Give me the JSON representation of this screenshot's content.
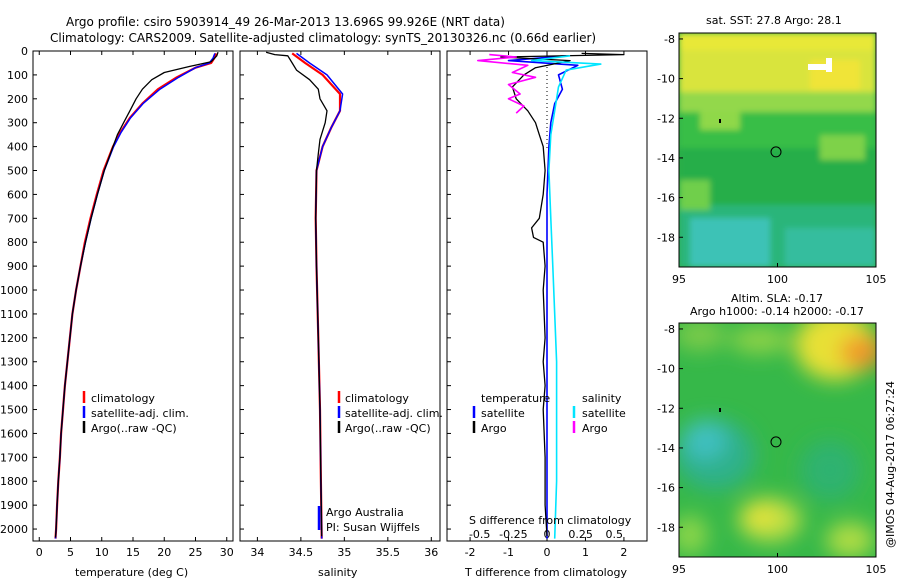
{
  "header": {
    "title_line1": "Argo profile: csiro 5903914_49 26-Mar-2013 13.696S 99.926E (NRT data)",
    "title_line2": "Climatology: CARS2009. Satellite-adjusted climatology: synTS_20130326.nc (0.66d earlier)"
  },
  "credit": "@IMOS 04-Aug-2017 06:27:24",
  "colors": {
    "climatology": "#ff0000",
    "satellite": "#0000ff",
    "argo": "#000000",
    "sal_satellite": "#00e5ff",
    "sal_argo": "#ff00ff"
  },
  "chart_data": [
    {
      "type": "line",
      "panel": "temperature",
      "xlabel": "temperature (deg C)",
      "xlim": [
        -1,
        31
      ],
      "ylim": [
        2050,
        0
      ],
      "xticks": [
        0,
        5,
        10,
        15,
        20,
        25,
        30
      ],
      "yticks": [
        0,
        100,
        200,
        300,
        400,
        500,
        600,
        700,
        800,
        900,
        1000,
        1100,
        1200,
        1300,
        1400,
        1500,
        1600,
        1700,
        1800,
        1900,
        2000
      ],
      "legend": [
        "climatology",
        "satellite-adj. clim.",
        "Argo(..raw -QC)"
      ],
      "series": [
        {
          "name": "climatology",
          "color": "#ff0000",
          "points": [
            [
              28.3,
              10
            ],
            [
              28.0,
              30
            ],
            [
              27.5,
              50
            ],
            [
              25,
              70
            ],
            [
              22,
              110
            ],
            [
              19,
              160
            ],
            [
              16.5,
              220
            ],
            [
              14.5,
              280
            ],
            [
              13,
              340
            ],
            [
              11.8,
              400
            ],
            [
              10.3,
              500
            ],
            [
              9.2,
              600
            ],
            [
              8.2,
              700
            ],
            [
              7.3,
              800
            ],
            [
              6.6,
              900
            ],
            [
              5.9,
              1000
            ],
            [
              5.3,
              1100
            ],
            [
              4.9,
              1200
            ],
            [
              4.5,
              1300
            ],
            [
              4.1,
              1400
            ],
            [
              3.8,
              1500
            ],
            [
              3.5,
              1600
            ],
            [
              3.3,
              1700
            ],
            [
              3.05,
              1800
            ],
            [
              2.85,
              1900
            ],
            [
              2.7,
              2000
            ],
            [
              2.6,
              2040
            ]
          ]
        },
        {
          "name": "satellite",
          "color": "#0000ff",
          "points": [
            [
              28.1,
              10
            ],
            [
              27.8,
              30
            ],
            [
              27.2,
              50
            ],
            [
              25,
              70
            ],
            [
              22.3,
              110
            ],
            [
              19.3,
              160
            ],
            [
              16.6,
              220
            ],
            [
              14.6,
              280
            ],
            [
              13.1,
              340
            ],
            [
              11.9,
              400
            ],
            [
              10.4,
              500
            ],
            [
              9.3,
              600
            ],
            [
              8.3,
              700
            ],
            [
              7.4,
              800
            ],
            [
              6.6,
              900
            ],
            [
              5.9,
              1000
            ],
            [
              5.3,
              1100
            ],
            [
              4.9,
              1200
            ],
            [
              4.5,
              1300
            ],
            [
              4.1,
              1400
            ],
            [
              3.8,
              1500
            ],
            [
              3.5,
              1600
            ],
            [
              3.3,
              1700
            ],
            [
              3.05,
              1800
            ],
            [
              2.85,
              1900
            ],
            [
              2.7,
              2000
            ],
            [
              2.6,
              2040
            ]
          ]
        },
        {
          "name": "argo",
          "color": "#000000",
          "points": [
            [
              28.6,
              5
            ],
            [
              28.4,
              20
            ],
            [
              27.5,
              45
            ],
            [
              24,
              65
            ],
            [
              20,
              90
            ],
            [
              18,
              120
            ],
            [
              16.5,
              160
            ],
            [
              15.5,
              200
            ],
            [
              14.5,
              250
            ],
            [
              13.5,
              300
            ],
            [
              12.5,
              350
            ],
            [
              11.8,
              400
            ],
            [
              10.4,
              500
            ],
            [
              9.3,
              600
            ],
            [
              8.3,
              700
            ],
            [
              7.4,
              800
            ],
            [
              6.6,
              900
            ],
            [
              5.9,
              1000
            ],
            [
              5.3,
              1100
            ],
            [
              4.9,
              1200
            ],
            [
              4.5,
              1300
            ],
            [
              4.1,
              1400
            ],
            [
              3.8,
              1500
            ],
            [
              3.5,
              1600
            ],
            [
              3.3,
              1700
            ],
            [
              3.05,
              1800
            ],
            [
              2.85,
              1900
            ],
            [
              2.7,
              2000
            ],
            [
              2.6,
              2035
            ]
          ]
        }
      ]
    },
    {
      "type": "line",
      "panel": "salinity",
      "xlabel": "salinity",
      "xlim": [
        33.8,
        36.1
      ],
      "ylim": [
        2050,
        0
      ],
      "xticks": [
        34,
        34.5,
        35,
        35.5,
        36
      ],
      "xtick_labels": [
        "34",
        "34.5",
        "35",
        "35.5",
        "36"
      ],
      "legend": [
        "climatology",
        "satellite-adj. clim.",
        "Argo(..raw -QC)"
      ],
      "annotation": [
        "Argo Australia",
        "PI: Susan Wijffels"
      ],
      "series": [
        {
          "name": "climatology",
          "color": "#ff0000",
          "points": [
            [
              34.4,
              10
            ],
            [
              34.55,
              50
            ],
            [
              34.75,
              100
            ],
            [
              34.95,
              180
            ],
            [
              34.95,
              250
            ],
            [
              34.85,
              320
            ],
            [
              34.75,
              400
            ],
            [
              34.68,
              500
            ],
            [
              34.67,
              700
            ],
            [
              34.68,
              900
            ],
            [
              34.7,
              1200
            ],
            [
              34.72,
              1500
            ],
            [
              34.73,
              1800
            ],
            [
              34.74,
              2040
            ]
          ]
        },
        {
          "name": "satellite",
          "color": "#0000ff",
          "points": [
            [
              34.45,
              10
            ],
            [
              34.6,
              50
            ],
            [
              34.8,
              100
            ],
            [
              34.98,
              180
            ],
            [
              34.95,
              250
            ],
            [
              34.85,
              320
            ],
            [
              34.75,
              400
            ],
            [
              34.68,
              500
            ],
            [
              34.67,
              700
            ],
            [
              34.68,
              900
            ],
            [
              34.7,
              1200
            ],
            [
              34.72,
              1500
            ],
            [
              34.73,
              1800
            ],
            [
              34.74,
              2040
            ]
          ]
        },
        {
          "name": "argo",
          "color": "#000000",
          "points": [
            [
              34.1,
              5
            ],
            [
              34.2,
              15
            ],
            [
              34.35,
              20
            ],
            [
              34.4,
              50
            ],
            [
              34.45,
              80
            ],
            [
              34.6,
              120
            ],
            [
              34.7,
              160
            ],
            [
              34.72,
              200
            ],
            [
              34.8,
              250
            ],
            [
              34.78,
              300
            ],
            [
              34.72,
              370
            ],
            [
              34.7,
              430
            ],
            [
              34.68,
              500
            ],
            [
              34.67,
              700
            ],
            [
              34.68,
              900
            ],
            [
              34.7,
              1200
            ],
            [
              34.72,
              1500
            ],
            [
              34.73,
              1800
            ],
            [
              34.74,
              2030
            ]
          ]
        }
      ]
    },
    {
      "type": "line",
      "panel": "difference",
      "xlabel": "T difference from climatology",
      "xlabel_top": "S difference from climatology",
      "xlim": [
        -2.6,
        2.6
      ],
      "ylim": [
        2050,
        0
      ],
      "xticks": [
        -2,
        -1,
        0,
        1,
        2
      ],
      "xtick_labels": [
        "-2",
        "-1",
        "0",
        "1",
        "2"
      ],
      "s_tick_positions": [
        -1.75,
        -0.875,
        0,
        0.875,
        1.75
      ],
      "s_tick_labels": [
        "-0.5",
        "-0.25",
        "0",
        "0.25",
        "0.5"
      ],
      "legend_left_title": "temperature",
      "legend_left": [
        "satellite",
        "Argo"
      ],
      "legend_right_title": "salinity",
      "legend_right": [
        "satellite",
        "Argo"
      ],
      "series": [
        {
          "name": "T satellite",
          "color": "#0000ff",
          "points": [
            [
              0.5,
              20
            ],
            [
              -1,
              40
            ],
            [
              0.8,
              60
            ],
            [
              0.3,
              100
            ],
            [
              0.4,
              160
            ],
            [
              0.2,
              220
            ],
            [
              0.1,
              300
            ],
            [
              0.05,
              400
            ],
            [
              0,
              600
            ],
            [
              0,
              1000
            ],
            [
              0,
              1500
            ],
            [
              0,
              2040
            ]
          ]
        },
        {
          "name": "T Argo",
          "color": "#000000",
          "points": [
            [
              0.9,
              10
            ],
            [
              2.0,
              15
            ],
            [
              -1.2,
              25
            ],
            [
              0.6,
              40
            ],
            [
              -0.3,
              70
            ],
            [
              -0.6,
              100
            ],
            [
              -0.9,
              150
            ],
            [
              -0.8,
              200
            ],
            [
              -0.5,
              250
            ],
            [
              -0.3,
              300
            ],
            [
              -0.2,
              350
            ],
            [
              -0.1,
              400
            ],
            [
              -0.05,
              500
            ],
            [
              -0.1,
              600
            ],
            [
              -0.2,
              700
            ],
            [
              -0.4,
              740
            ],
            [
              -0.35,
              780
            ],
            [
              -0.1,
              800
            ],
            [
              -0.05,
              900
            ],
            [
              -0.1,
              1000
            ],
            [
              -0.05,
              1200
            ],
            [
              -0.1,
              1300
            ],
            [
              -0.05,
              1400
            ],
            [
              -0.1,
              1500
            ],
            [
              -0.05,
              1700
            ],
            [
              -0.05,
              1900
            ],
            [
              0,
              2030
            ]
          ]
        },
        {
          "name": "S satellite",
          "color": "#00e5ff",
          "points": [
            [
              0.6,
              20
            ],
            [
              -0.4,
              40
            ],
            [
              1.4,
              55
            ],
            [
              0.5,
              80
            ],
            [
              0.3,
              150
            ],
            [
              0.2,
              250
            ],
            [
              0.1,
              350
            ],
            [
              0.05,
              500
            ],
            [
              0.1,
              700
            ],
            [
              0.15,
              900
            ],
            [
              0.2,
              1100
            ],
            [
              0.25,
              1300
            ],
            [
              0.25,
              1500
            ],
            [
              0.25,
              1800
            ],
            [
              0.2,
              2040
            ]
          ]
        },
        {
          "name": "S Argo",
          "color": "#ff00ff",
          "points": [
            [
              -1.5,
              15
            ],
            [
              -0.8,
              25
            ],
            [
              -1.8,
              40
            ],
            [
              -0.5,
              60
            ],
            [
              -0.9,
              90
            ],
            [
              -0.3,
              110
            ],
            [
              -1.0,
              140
            ],
            [
              -0.7,
              180
            ],
            [
              -1.0,
              200
            ],
            [
              -0.6,
              230
            ],
            [
              -0.8,
              260
            ]
          ]
        }
      ]
    },
    {
      "type": "heatmap",
      "panel": "sst_map",
      "title": "sat. SST: 27.8 Argo: 28.1",
      "xlim": [
        95,
        105
      ],
      "ylim": [
        -19.5,
        -7.7
      ],
      "xticks": [
        95,
        100,
        105
      ],
      "yticks": [
        -8,
        -10,
        -12,
        -14,
        -16,
        -18
      ],
      "marker": [
        99.926,
        -13.696
      ]
    },
    {
      "type": "heatmap",
      "panel": "sla_map",
      "title_line1": "Altim. SLA: -0.17",
      "title_line2": "Argo h1000: -0.14 h2000: -0.17",
      "xlim": [
        95,
        105
      ],
      "ylim": [
        -19.5,
        -7.7
      ],
      "xticks": [
        95,
        100,
        105
      ],
      "yticks": [
        -8,
        -10,
        -12,
        -14,
        -16,
        -18
      ],
      "marker": [
        99.926,
        -13.696
      ]
    }
  ]
}
